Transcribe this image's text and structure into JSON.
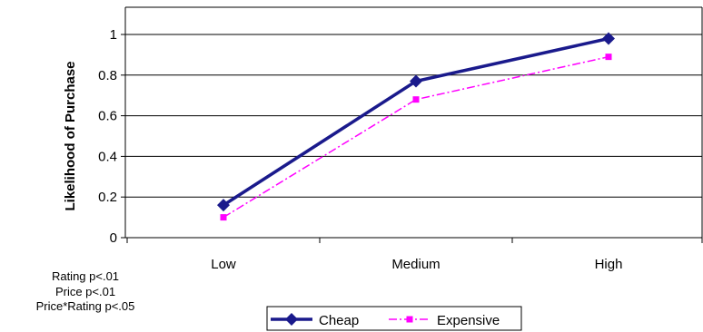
{
  "chart_data": {
    "type": "line",
    "ylabel": "Likelihood of Purchase",
    "xlabel": "",
    "categories": [
      "Low",
      "Medium",
      "High"
    ],
    "ylim": [
      0,
      1
    ],
    "yticks": [
      "0",
      "0.2",
      "0.4",
      "0.6",
      "0.8",
      "1"
    ],
    "grid": true,
    "legend_position": "bottom",
    "series": [
      {
        "name": "Cheap",
        "values": [
          0.16,
          0.77,
          0.98
        ],
        "color": "#1a1a8c",
        "style": "solid",
        "marker": "diamond"
      },
      {
        "name": "Expensive",
        "values": [
          0.1,
          0.68,
          0.89
        ],
        "color": "#ff00ff",
        "style": "dash-dot",
        "marker": "square"
      }
    ]
  },
  "notes": [
    "Rating p<.01",
    "Price p<.01",
    "Price*Rating p<.05"
  ]
}
